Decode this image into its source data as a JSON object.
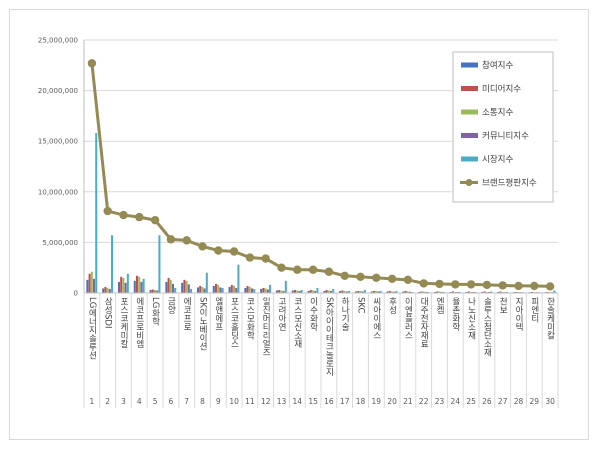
{
  "chart_data": {
    "type": "bar",
    "ylim": [
      0,
      25000000
    ],
    "y_ticks": [
      "0",
      "5,000,000",
      "10,000,000",
      "15,000,000",
      "20,000,000",
      "25,000,000"
    ],
    "y_tick_values": [
      0,
      5000000,
      10000000,
      15000000,
      20000000,
      25000000
    ],
    "categories": [
      "LG에너지솔루션",
      "삼성SDI",
      "포스코케미칼",
      "에코프로비엠",
      "LG화학",
      "금양",
      "에코프로",
      "SK이노베이션",
      "엘앤에프",
      "포스코홀딩스",
      "코스모화학",
      "일진머티리얼즈",
      "고려아연",
      "코스모신소재",
      "이수화학",
      "SK아이이테크놀로지",
      "하나기술",
      "SKC",
      "씨아이에스",
      "후성",
      "이엔플러스",
      "대주전자재료",
      "엔켐",
      "율촌화학",
      "나노신소재",
      "솔루스첨단소재",
      "천보",
      "지아이텍",
      "피엔티",
      "한솔케미칼"
    ],
    "ranks": [
      "1",
      "2",
      "3",
      "4",
      "5",
      "6",
      "7",
      "8",
      "9",
      "10",
      "11",
      "12",
      "13",
      "14",
      "15",
      "16",
      "17",
      "18",
      "19",
      "20",
      "21",
      "22",
      "23",
      "24",
      "25",
      "26",
      "27",
      "28",
      "29",
      "30"
    ],
    "series": [
      {
        "name": "참여지수",
        "color": "#4472c4",
        "kind": "bar",
        "values": [
          1300000,
          450000,
          1100000,
          1200000,
          300000,
          1100000,
          1000000,
          550000,
          700000,
          600000,
          500000,
          400000,
          250000,
          250000,
          200000,
          200000,
          200000,
          150000,
          150000,
          150000,
          150000,
          100000,
          100000,
          100000,
          100000,
          100000,
          100000,
          80000,
          80000,
          80000
        ]
      },
      {
        "name": "미디어지수",
        "color": "#c0504d",
        "kind": "bar",
        "values": [
          1900000,
          600000,
          1600000,
          1700000,
          350000,
          1500000,
          1300000,
          700000,
          900000,
          800000,
          700000,
          500000,
          300000,
          300000,
          300000,
          300000,
          250000,
          200000,
          200000,
          200000,
          200000,
          150000,
          150000,
          150000,
          150000,
          150000,
          150000,
          100000,
          100000,
          100000
        ]
      },
      {
        "name": "소통지수",
        "color": "#9bbb59",
        "kind": "bar",
        "values": [
          2100000,
          500000,
          1500000,
          1600000,
          300000,
          1300000,
          1200000,
          600000,
          800000,
          700000,
          600000,
          450000,
          250000,
          250000,
          250000,
          250000,
          200000,
          200000,
          200000,
          150000,
          150000,
          150000,
          150000,
          100000,
          100000,
          100000,
          100000,
          100000,
          80000,
          80000
        ]
      },
      {
        "name": "커뮤니티지수",
        "color": "#8064a2",
        "kind": "bar",
        "values": [
          1400000,
          400000,
          1000000,
          1100000,
          250000,
          900000,
          850000,
          450000,
          550000,
          500000,
          450000,
          350000,
          200000,
          200000,
          200000,
          200000,
          150000,
          150000,
          150000,
          120000,
          120000,
          100000,
          100000,
          100000,
          100000,
          100000,
          80000,
          80000,
          80000,
          80000
        ]
      },
      {
        "name": "시장지수",
        "color": "#4bacc6",
        "kind": "bar",
        "values": [
          15800000,
          5700000,
          1900000,
          1400000,
          5700000,
          500000,
          400000,
          2000000,
          500000,
          2800000,
          400000,
          800000,
          1200000,
          300000,
          500000,
          400000,
          200000,
          300000,
          200000,
          200000,
          100000,
          100000,
          100000,
          100000,
          100000,
          150000,
          100000,
          80000,
          80000,
          250000
        ]
      },
      {
        "name": "브랜드평판지수",
        "color": "#948a54",
        "kind": "line",
        "values": [
          22700000,
          8100000,
          7700000,
          7500000,
          7200000,
          5300000,
          5200000,
          4600000,
          4200000,
          4100000,
          3500000,
          3400000,
          2500000,
          2300000,
          2300000,
          2100000,
          1700000,
          1600000,
          1500000,
          1400000,
          1300000,
          950000,
          900000,
          850000,
          850000,
          800000,
          750000,
          700000,
          700000,
          650000
        ]
      }
    ]
  }
}
